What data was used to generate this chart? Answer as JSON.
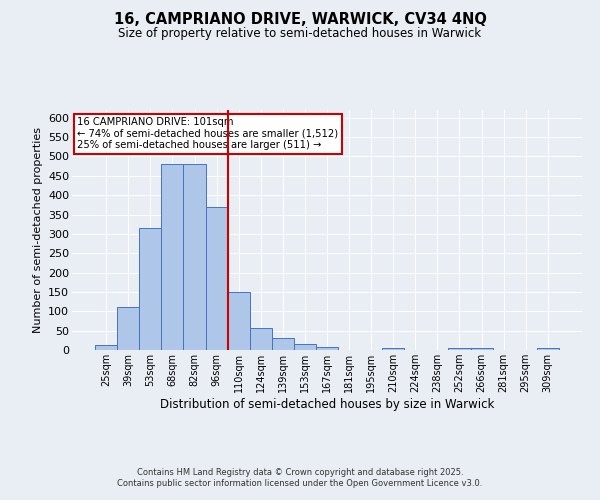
{
  "title_line1": "16, CAMPRIANO DRIVE, WARWICK, CV34 4NQ",
  "title_line2": "Size of property relative to semi-detached houses in Warwick",
  "categories": [
    "25sqm",
    "39sqm",
    "53sqm",
    "68sqm",
    "82sqm",
    "96sqm",
    "110sqm",
    "124sqm",
    "139sqm",
    "153sqm",
    "167sqm",
    "181sqm",
    "195sqm",
    "210sqm",
    "224sqm",
    "238sqm",
    "252sqm",
    "266sqm",
    "281sqm",
    "295sqm",
    "309sqm"
  ],
  "values": [
    13,
    112,
    316,
    480,
    480,
    370,
    150,
    58,
    30,
    15,
    9,
    0,
    0,
    4,
    0,
    0,
    6,
    5,
    0,
    0,
    5
  ],
  "bar_color": "#aec6e8",
  "bar_edge_color": "#4472c4",
  "bg_color": "#e8eef4",
  "grid_color": "#ffffff",
  "vline_x": 5.5,
  "vline_color": "#cc0000",
  "ylabel": "Number of semi-detached properties",
  "xlabel": "Distribution of semi-detached houses by size in Warwick",
  "ylim": [
    0,
    620
  ],
  "yticks": [
    0,
    50,
    100,
    150,
    200,
    250,
    300,
    350,
    400,
    450,
    500,
    550,
    600
  ],
  "annotation_title": "16 CAMPRIANO DRIVE: 101sqm",
  "annotation_line1": "← 74% of semi-detached houses are smaller (1,512)",
  "annotation_line2": "25% of semi-detached houses are larger (511) →",
  "annotation_box_color": "#ffffff",
  "annotation_box_edge": "#cc0000",
  "footer_line1": "Contains HM Land Registry data © Crown copyright and database right 2025.",
  "footer_line2": "Contains public sector information licensed under the Open Government Licence v3.0."
}
